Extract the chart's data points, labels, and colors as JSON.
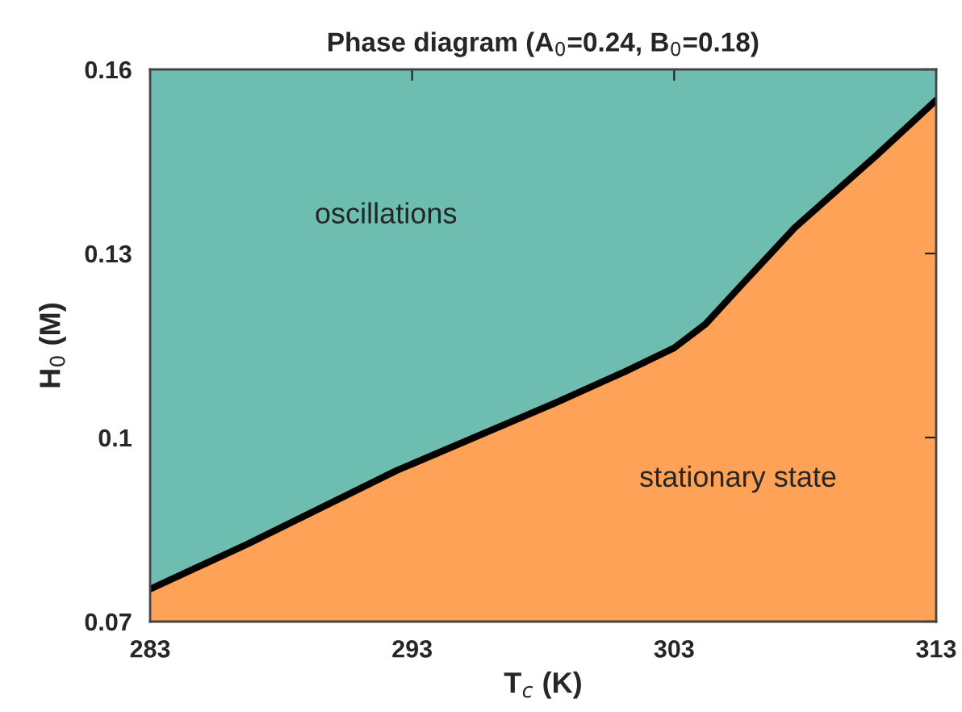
{
  "chart_data": {
    "type": "area",
    "title": "Phase diagram (A$_{0}$=0.24, B$_{0}$=0.18)",
    "xlabel": "T$_{c}$ (K)",
    "ylabel": "H$_{0}$ (M)",
    "x": [
      283,
      286.7,
      292.4,
      298.5,
      301.1,
      303.0,
      304.2,
      305.6,
      307.6,
      310.7,
      313
    ],
    "series": [
      {
        "color": "#fda257",
        "values": [
          0.0753,
          0.0826,
          0.0946,
          0.1057,
          0.1107,
          0.1146,
          0.1185,
          0.125,
          0.1342,
          0.1459,
          0.155
        ]
      }
    ],
    "bands": [
      {
        "axis": "y",
        "from": 0.07,
        "to": 0.16,
        "label": "oscillations",
        "color": "#6dbdb1"
      }
    ],
    "annotations": [
      "stationary state"
    ],
    "xlim": [
      283,
      313
    ],
    "xticks": [
      283,
      293,
      303,
      313
    ],
    "ylim": [
      0.07,
      0.16
    ],
    "yticks": [
      {
        "value": 0.07,
        "label": "0.07"
      },
      {
        "value": 0.1,
        "label": "0.1"
      },
      {
        "value": 0.13,
        "label": "0.13"
      },
      {
        "value": 0.16,
        "label": "0.16"
      }
    ],
    "grid": false,
    "legend": false
  }
}
